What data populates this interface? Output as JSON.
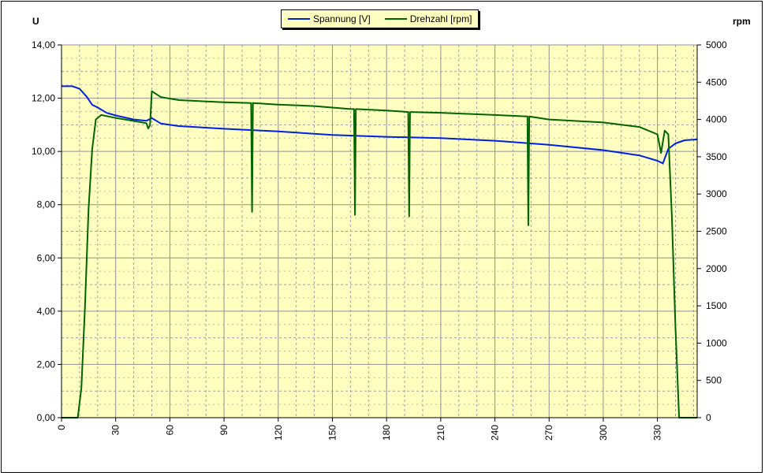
{
  "chart_data": {
    "type": "line",
    "y_left_label": "U",
    "y_right_label": "rpm",
    "x_ticks": [
      "0",
      "30",
      "60",
      "90",
      "120",
      "150",
      "180",
      "210",
      "240",
      "270",
      "300",
      "330"
    ],
    "y_left_ticks": [
      "0,00",
      "2,00",
      "4,00",
      "6,00",
      "8,00",
      "10,00",
      "12,00",
      "14,00"
    ],
    "y_right_ticks": [
      "0",
      "500",
      "1000",
      "1500",
      "2000",
      "2500",
      "3000",
      "3500",
      "4000",
      "4500",
      "5000"
    ],
    "x_range": [
      0,
      352
    ],
    "y_left_range": [
      0,
      14
    ],
    "y_right_range": [
      0,
      5000
    ],
    "grid": true,
    "legend_position": "top-center",
    "series": [
      {
        "name": "Spannung [V]",
        "axis": "left",
        "color": "#0020e0",
        "points": [
          [
            0,
            12.45
          ],
          [
            6,
            12.45
          ],
          [
            10,
            12.35
          ],
          [
            14,
            12.05
          ],
          [
            17,
            11.75
          ],
          [
            20,
            11.65
          ],
          [
            25,
            11.45
          ],
          [
            30,
            11.35
          ],
          [
            40,
            11.2
          ],
          [
            47,
            11.15
          ],
          [
            50,
            11.25
          ],
          [
            55,
            11.05
          ],
          [
            65,
            10.95
          ],
          [
            90,
            10.85
          ],
          [
            120,
            10.75
          ],
          [
            150,
            10.62
          ],
          [
            180,
            10.55
          ],
          [
            210,
            10.5
          ],
          [
            240,
            10.4
          ],
          [
            270,
            10.25
          ],
          [
            300,
            10.05
          ],
          [
            320,
            9.85
          ],
          [
            330,
            9.65
          ],
          [
            333,
            9.55
          ],
          [
            336,
            10.1
          ],
          [
            340,
            10.3
          ],
          [
            345,
            10.42
          ],
          [
            352,
            10.45
          ]
        ]
      },
      {
        "name": "Drehzahl [rpm]",
        "axis": "right",
        "color": "#006400",
        "points": [
          [
            0,
            0
          ],
          [
            9,
            0
          ],
          [
            11,
            400
          ],
          [
            13,
            1500
          ],
          [
            15,
            2800
          ],
          [
            17,
            3600
          ],
          [
            19,
            4000
          ],
          [
            22,
            4060
          ],
          [
            30,
            4020
          ],
          [
            40,
            3980
          ],
          [
            47,
            3950
          ],
          [
            48,
            3880
          ],
          [
            49,
            3920
          ],
          [
            50,
            4380
          ],
          [
            55,
            4300
          ],
          [
            65,
            4260
          ],
          [
            90,
            4230
          ],
          [
            105,
            4220
          ],
          [
            105.5,
            2760
          ],
          [
            106,
            4220
          ],
          [
            120,
            4200
          ],
          [
            140,
            4180
          ],
          [
            160,
            4140
          ],
          [
            162,
            4140
          ],
          [
            162.5,
            2720
          ],
          [
            163,
            4140
          ],
          [
            180,
            4120
          ],
          [
            192,
            4100
          ],
          [
            192.5,
            2700
          ],
          [
            193,
            4100
          ],
          [
            210,
            4090
          ],
          [
            240,
            4060
          ],
          [
            258,
            4040
          ],
          [
            258.5,
            2580
          ],
          [
            259,
            4040
          ],
          [
            270,
            4000
          ],
          [
            300,
            3960
          ],
          [
            320,
            3900
          ],
          [
            330,
            3800
          ],
          [
            332,
            3550
          ],
          [
            334,
            3850
          ],
          [
            336,
            3800
          ],
          [
            338,
            2700
          ],
          [
            340,
            1200
          ],
          [
            342,
            0
          ],
          [
            352,
            0
          ]
        ]
      }
    ]
  }
}
